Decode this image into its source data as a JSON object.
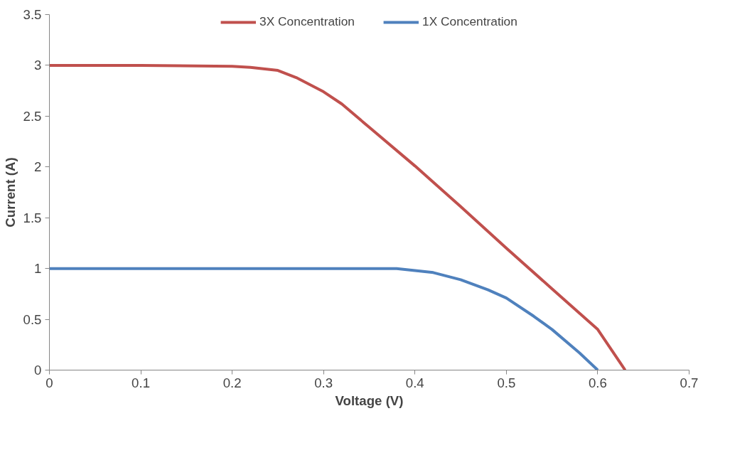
{
  "chart_data": {
    "type": "line",
    "xlabel": "Voltage (V)",
    "ylabel": "Current (A)",
    "xlim": [
      0,
      0.7
    ],
    "xticks": [
      0,
      0.1,
      0.2,
      0.3,
      0.4,
      0.5,
      0.6,
      0.7
    ],
    "ylim": [
      0,
      3.5
    ],
    "yticks": [
      0,
      0.5,
      1,
      1.5,
      2,
      2.5,
      3,
      3.5
    ],
    "grid": false,
    "legend": "top",
    "marker": "none",
    "line_style": "solid",
    "series": [
      {
        "name": "3X Concentration",
        "color": "#c0504d",
        "x": [
          0,
          0.1,
          0.2,
          0.22,
          0.25,
          0.27,
          0.3,
          0.32,
          0.35,
          0.4,
          0.45,
          0.5,
          0.55,
          0.6,
          0.63
        ],
        "values": [
          3,
          3,
          2.99,
          2.98,
          2.95,
          2.88,
          2.74,
          2.62,
          2.39,
          2.01,
          1.61,
          1.2,
          0.8,
          0.4,
          0
        ]
      },
      {
        "name": "1X Concentration",
        "color": "#4f81bd",
        "x": [
          0,
          0.1,
          0.2,
          0.3,
          0.35,
          0.38,
          0.4,
          0.42,
          0.45,
          0.48,
          0.5,
          0.53,
          0.55,
          0.58,
          0.6
        ],
        "values": [
          1,
          1,
          1,
          1,
          1,
          1,
          0.98,
          0.96,
          0.89,
          0.79,
          0.71,
          0.53,
          0.4,
          0.17,
          0
        ]
      }
    ]
  }
}
